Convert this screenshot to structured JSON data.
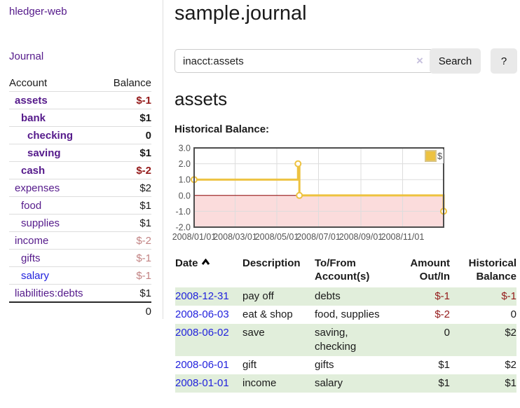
{
  "colors": {
    "text": "#1a1a1a",
    "link_purple": "#551A8B",
    "link_blue": "#2222dd",
    "negative_strong": "#941a1a",
    "negative_muted": "#c28383",
    "row_green": "#e1eedb",
    "series_yellow": "#edc240",
    "chart_negative_fill": "#fbdcdc",
    "zero_line": "#8b0000",
    "grid": "#dddddd",
    "chart_border": "#4d4d4d",
    "axis_text": "#545454",
    "button_bg": "#e9e9e9",
    "border_light": "#dddddd",
    "input_border": "#cccccc",
    "clear_icon": "#c6c0dd"
  },
  "sidebar": {
    "app_title": "hledger-web",
    "journal_link": "Journal",
    "accounts_table": {
      "headers": {
        "account": "Account",
        "balance": "Balance"
      },
      "rows": [
        {
          "name": "assets",
          "level": 1,
          "bold": true,
          "balance": "$-1",
          "balance_style": "neg"
        },
        {
          "name": "bank",
          "level": 2,
          "bold": true,
          "balance": "$1",
          "balance_style": ""
        },
        {
          "name": "checking",
          "level": 3,
          "bold": true,
          "balance": "0",
          "balance_style": ""
        },
        {
          "name": "saving",
          "level": 3,
          "bold": true,
          "balance": "$1",
          "balance_style": ""
        },
        {
          "name": "cash",
          "level": 2,
          "bold": true,
          "balance": "$-2",
          "balance_style": "neg"
        },
        {
          "name": "expenses",
          "level": 1,
          "bold": false,
          "balance": "$2",
          "balance_style": ""
        },
        {
          "name": "food",
          "level": 2,
          "bold": false,
          "balance": "$1",
          "balance_style": ""
        },
        {
          "name": "supplies",
          "level": 2,
          "bold": false,
          "balance": "$1",
          "balance_style": ""
        },
        {
          "name": "income",
          "level": 1,
          "bold": false,
          "balance": "$-2",
          "balance_style": "negmuted"
        },
        {
          "name": "gifts",
          "level": 2,
          "bold": false,
          "balance": "$-1",
          "balance_style": "negmuted"
        },
        {
          "name": "salary",
          "level": 2,
          "bold": false,
          "balance": "$-1",
          "balance_style": "negmuted",
          "link_color": "blue"
        },
        {
          "name": "liabilities:debts",
          "level": 1,
          "bold": false,
          "balance": "$1",
          "balance_style": ""
        }
      ],
      "total": "0"
    }
  },
  "main": {
    "title": "sample.journal",
    "search": {
      "value": "inacct:assets",
      "clear_icon": "×",
      "search_button": "Search",
      "help_button": "?"
    },
    "account_heading": "assets",
    "chart_heading": "Historical Balance:",
    "register": {
      "headers": {
        "date": "Date",
        "description": "Description",
        "tofrom": "To/From\nAccount(s)",
        "amount": "Amount\nOut/In",
        "historical": "Historical\nBalance"
      },
      "sort_icon": "chevron-up",
      "rows": [
        {
          "date": "2008-12-31",
          "description": "pay off",
          "accounts": "debts",
          "amount": "$-1",
          "amount_style": "neg",
          "balance": "$-1",
          "balance_style": "neg",
          "shaded": true
        },
        {
          "date": "2008-06-03",
          "description": "eat & shop",
          "accounts": "food, supplies",
          "amount": "$-2",
          "amount_style": "neg",
          "balance": "0",
          "balance_style": "",
          "shaded": false
        },
        {
          "date": "2008-06-02",
          "description": "save",
          "accounts": "saving,\nchecking",
          "amount": "0",
          "amount_style": "",
          "balance": "$2",
          "balance_style": "",
          "shaded": true
        },
        {
          "date": "2008-06-01",
          "description": "gift",
          "accounts": "gifts",
          "amount": "$1",
          "amount_style": "",
          "balance": "$2",
          "balance_style": "",
          "shaded": false
        },
        {
          "date": "2008-01-01",
          "description": "income",
          "accounts": "salary",
          "amount": "$1",
          "amount_style": "",
          "balance": "$1",
          "balance_style": "",
          "shaded": true
        }
      ]
    }
  },
  "chart_data": {
    "type": "line",
    "title": "Historical Balance",
    "steps": true,
    "series": [
      {
        "name": "$",
        "color": "#edc240"
      }
    ],
    "points": [
      {
        "date": "2008-01-01",
        "day": 0,
        "value": 1
      },
      {
        "date": "2008-06-01",
        "day": 152,
        "value": 2
      },
      {
        "date": "2008-06-03",
        "day": 154,
        "value": 0
      },
      {
        "date": "2008-12-31",
        "day": 365,
        "value": -1
      }
    ],
    "xlim_days": [
      0,
      365
    ],
    "ylim": [
      -2,
      3
    ],
    "xticks": [
      {
        "day": 0,
        "label": "2008/01/01"
      },
      {
        "day": 60,
        "label": "2008/03/01"
      },
      {
        "day": 121,
        "label": "2008/05/01"
      },
      {
        "day": 182,
        "label": "2008/07/01"
      },
      {
        "day": 244,
        "label": "2008/09/01"
      },
      {
        "day": 305,
        "label": "2008/11/01"
      }
    ],
    "yticks": [
      {
        "value": 3,
        "label": "3.0"
      },
      {
        "value": 2,
        "label": "2.0"
      },
      {
        "value": 1,
        "label": "1.0"
      },
      {
        "value": 0,
        "label": "0.0"
      },
      {
        "value": -1,
        "label": "-1.0"
      },
      {
        "value": -2,
        "label": "-2.0"
      }
    ],
    "grid": true,
    "legend_position": "top-right",
    "negative_region_shaded": true
  }
}
